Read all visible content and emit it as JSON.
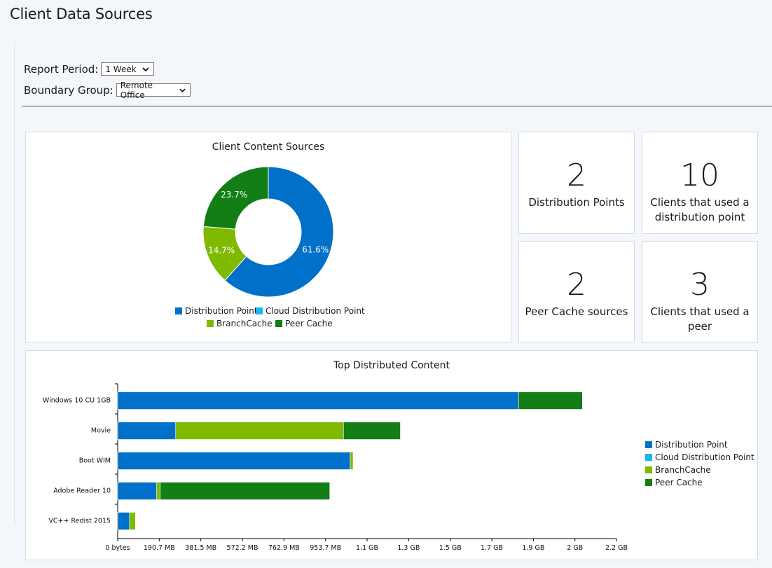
{
  "page": {
    "title": "Client Data Sources"
  },
  "filters": {
    "report_period": {
      "label": "Report Period:",
      "value": "1 Week"
    },
    "boundary_group": {
      "label": "Boundary Group:",
      "value": "Remote Office"
    }
  },
  "colors": {
    "distribution_point": "#0070c8",
    "cloud_distribution_point": "#1ab6ef",
    "branchcache": "#7fba00",
    "peer_cache": "#127e15"
  },
  "stats": [
    {
      "value": "2",
      "caption": "Distribution Points"
    },
    {
      "value": "10",
      "caption": "Clients that used a distribution point"
    },
    {
      "value": "2",
      "caption": "Peer Cache sources"
    },
    {
      "value": "3",
      "caption": "Clients that used a peer"
    }
  ],
  "chart_data": [
    {
      "type": "pie",
      "title": "Client Content Sources",
      "donut": true,
      "slices": [
        {
          "name": "Distribution Point",
          "value": 61.6,
          "label": "61.6%",
          "color": "#0070c8"
        },
        {
          "name": "Cloud Distribution Point",
          "value": 0,
          "label": "",
          "color": "#1ab6ef"
        },
        {
          "name": "BranchCache",
          "value": 14.7,
          "label": "14.7%",
          "color": "#7fba00"
        },
        {
          "name": "Peer Cache",
          "value": 23.7,
          "label": "23.7%",
          "color": "#127e15"
        }
      ],
      "legend": [
        "Distribution Point",
        "Cloud Distribution Point",
        "BranchCache",
        "Peer Cache"
      ],
      "legend_position": "bottom"
    },
    {
      "type": "bar",
      "orientation": "horizontal",
      "stacked": true,
      "title": "Top Distributed Content",
      "categories": [
        "Windows 10 CU 1GB",
        "Movie",
        "Boot WIM",
        "Adobe Reader 10",
        "VC++ Redist 2015"
      ],
      "unit": "MB",
      "series": [
        {
          "name": "Distribution Point",
          "color": "#0070c8",
          "values": [
            1839,
            266,
            1067,
            179,
            54
          ]
        },
        {
          "name": "Cloud Distribution Point",
          "color": "#1ab6ef",
          "values": [
            0,
            0,
            0,
            0,
            0
          ]
        },
        {
          "name": "BranchCache",
          "color": "#7fba00",
          "values": [
            0,
            770,
            13,
            16,
            27
          ]
        },
        {
          "name": "Peer Cache",
          "color": "#127e15",
          "values": [
            293,
            261,
            0,
            778,
            0
          ]
        }
      ],
      "xlim": [
        0,
        2288.6
      ],
      "x_ticks": [
        {
          "value": 0,
          "label": "0 bytes"
        },
        {
          "value": 190.7,
          "label": "190.7 MB"
        },
        {
          "value": 381.5,
          "label": "381.5 MB"
        },
        {
          "value": 572.2,
          "label": "572.2 MB"
        },
        {
          "value": 762.9,
          "label": "762.9 MB"
        },
        {
          "value": 953.7,
          "label": "953.7 MB"
        },
        {
          "value": 1144.4,
          "label": "1.1 GB"
        },
        {
          "value": 1335.1,
          "label": "1.3 GB"
        },
        {
          "value": 1525.9,
          "label": "1.5 GB"
        },
        {
          "value": 1716.6,
          "label": "1.7 GB"
        },
        {
          "value": 1907.3,
          "label": "1.9 GB"
        },
        {
          "value": 2098.1,
          "label": "2 GB"
        },
        {
          "value": 2288.8,
          "label": "2.2 GB"
        }
      ],
      "legend": [
        "Distribution Point",
        "Cloud Distribution Point",
        "BranchCache",
        "Peer Cache"
      ],
      "legend_position": "right"
    }
  ]
}
